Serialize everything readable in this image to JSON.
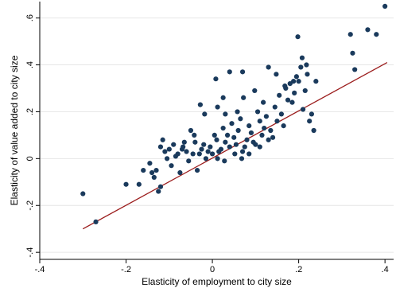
{
  "chart_data": {
    "type": "scatter",
    "xlabel": "Elasticity of employment to city size",
    "ylabel": "Elasticity of value added to city size",
    "xlim": [
      -0.4,
      0.42
    ],
    "ylim": [
      -0.43,
      0.67
    ],
    "x_ticks": [
      {
        "value": -0.4,
        "label": "-.4"
      },
      {
        "value": -0.2,
        "label": "-.2"
      },
      {
        "value": 0,
        "label": "0"
      },
      {
        "value": 0.2,
        "label": ".2"
      },
      {
        "value": 0.4,
        "label": ".4"
      }
    ],
    "y_ticks": [
      {
        "value": -0.4,
        "label": "-.4"
      },
      {
        "value": -0.2,
        "label": "-.2"
      },
      {
        "value": 0,
        "label": "0"
      },
      {
        "value": 0.2,
        "label": ".2"
      },
      {
        "value": 0.4,
        "label": ".4"
      },
      {
        "value": 0.6,
        "label": ".6"
      }
    ],
    "grid": "horizontal",
    "legend": "none",
    "colors": {
      "points": "#1a3a5c",
      "fit_line": "#9b1c1c",
      "grid": "#e6e6e6"
    },
    "series": [
      {
        "type": "scatter",
        "points": [
          [
            -0.3,
            -0.15
          ],
          [
            -0.27,
            -0.27
          ],
          [
            -0.2,
            -0.11
          ],
          [
            -0.17,
            -0.11
          ],
          [
            -0.16,
            -0.05
          ],
          [
            -0.14,
            -0.06
          ],
          [
            -0.135,
            -0.08
          ],
          [
            -0.13,
            -0.05
          ],
          [
            -0.125,
            -0.14
          ],
          [
            -0.12,
            -0.12
          ],
          [
            -0.12,
            0.05
          ],
          [
            -0.115,
            0.08
          ],
          [
            -0.11,
            0.03
          ],
          [
            -0.1,
            0.04
          ],
          [
            -0.095,
            -0.03
          ],
          [
            -0.09,
            0.06
          ],
          [
            -0.085,
            0.01
          ],
          [
            -0.08,
            0.02
          ],
          [
            -0.075,
            -0.06
          ],
          [
            -0.07,
            0.04
          ],
          [
            -0.065,
            0.07
          ],
          [
            -0.06,
            0.03
          ],
          [
            -0.055,
            -0.01
          ],
          [
            -0.05,
            0.12
          ],
          [
            -0.045,
            0.02
          ],
          [
            -0.04,
            0.07
          ],
          [
            -0.035,
            -0.05
          ],
          [
            -0.03,
            0.02
          ],
          [
            -0.025,
            0.04
          ],
          [
            -0.02,
            0.06
          ],
          [
            -0.018,
            0.19
          ],
          [
            -0.015,
            0.0
          ],
          [
            -0.01,
            0.03
          ],
          [
            -0.005,
            0.05
          ],
          [
            0.0,
            0.02
          ],
          [
            0.005,
            0.1
          ],
          [
            0.01,
            0.08
          ],
          [
            0.015,
            0.03
          ],
          [
            0.02,
            0.04
          ],
          [
            0.025,
            0.13
          ],
          [
            0.03,
            0.07
          ],
          [
            0.035,
            0.1
          ],
          [
            0.04,
            0.05
          ],
          [
            0.045,
            0.15
          ],
          [
            0.05,
            0.09
          ],
          [
            0.055,
            0.06
          ],
          [
            0.06,
            0.12
          ],
          [
            0.065,
            0.17
          ],
          [
            0.07,
            0.03
          ],
          [
            0.075,
            0.05
          ],
          [
            0.08,
            0.08
          ],
          [
            0.085,
            0.14
          ],
          [
            0.09,
            0.11
          ],
          [
            0.095,
            0.07
          ],
          [
            0.1,
            0.06
          ],
          [
            0.105,
            0.2
          ],
          [
            0.11,
            0.16
          ],
          [
            0.115,
            0.1
          ],
          [
            0.12,
            0.13
          ],
          [
            0.125,
            0.18
          ],
          [
            0.13,
            0.08
          ],
          [
            0.135,
            0.12
          ],
          [
            0.14,
            0.09
          ],
          [
            0.145,
            0.22
          ],
          [
            0.15,
            0.16
          ],
          [
            0.155,
            0.27
          ],
          [
            0.16,
            0.19
          ],
          [
            0.165,
            0.14
          ],
          [
            0.17,
            0.3
          ],
          [
            0.175,
            0.25
          ],
          [
            0.18,
            0.32
          ],
          [
            0.185,
            0.24
          ],
          [
            0.19,
            0.28
          ],
          [
            0.195,
            0.35
          ],
          [
            0.2,
            0.33
          ],
          [
            0.205,
            0.39
          ],
          [
            0.21,
            0.21
          ],
          [
            0.215,
            0.29
          ],
          [
            0.22,
            0.36
          ],
          [
            0.225,
            0.16
          ],
          [
            0.23,
            0.19
          ],
          [
            0.235,
            0.12
          ],
          [
            0.24,
            0.33
          ],
          [
            -0.145,
            -0.02
          ],
          [
            -0.105,
            0.0
          ],
          [
            -0.068,
            0.05
          ],
          [
            -0.042,
            0.1
          ],
          [
            -0.028,
            0.23
          ],
          [
            0.012,
            0.22
          ],
          [
            0.03,
            0.19
          ],
          [
            0.058,
            0.2
          ],
          [
            0.072,
            0.26
          ],
          [
            0.098,
            0.29
          ],
          [
            0.118,
            0.24
          ],
          [
            0.148,
            0.36
          ],
          [
            0.168,
            0.31
          ],
          [
            0.188,
            0.33
          ],
          [
            0.198,
            0.52
          ],
          [
            0.208,
            0.43
          ],
          [
            0.218,
            0.4
          ],
          [
            0.012,
            0.0
          ],
          [
            0.028,
            -0.01
          ],
          [
            0.052,
            0.02
          ],
          [
            0.068,
            0.0
          ],
          [
            0.085,
            0.02
          ],
          [
            0.11,
            0.05
          ],
          [
            0.008,
            0.34
          ],
          [
            0.04,
            0.37
          ],
          [
            0.07,
            0.37
          ],
          [
            0.025,
            0.26
          ],
          [
            0.13,
            0.39
          ],
          [
            0.32,
            0.53
          ],
          [
            0.325,
            0.45
          ],
          [
            0.33,
            0.38
          ],
          [
            0.36,
            0.55
          ],
          [
            0.38,
            0.53
          ],
          [
            0.4,
            0.65
          ]
        ]
      },
      {
        "type": "line",
        "points": [
          [
            -0.3,
            -0.3
          ],
          [
            0.405,
            0.41
          ]
        ]
      }
    ]
  }
}
